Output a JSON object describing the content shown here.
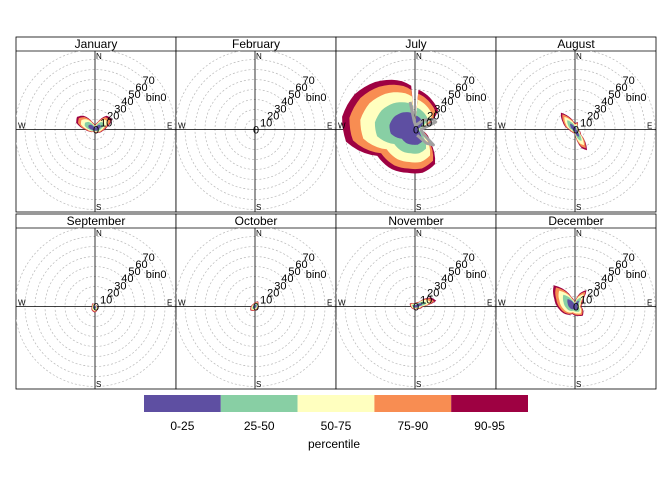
{
  "chart_data": {
    "type": "polar-percentile",
    "panels": [
      {
        "title": "January",
        "shape": "jan"
      },
      {
        "title": "February",
        "shape": "none"
      },
      {
        "title": "July",
        "shape": "jul"
      },
      {
        "title": "August",
        "shape": "aug"
      },
      {
        "title": "September",
        "shape": "sep"
      },
      {
        "title": "October",
        "shape": "oct"
      },
      {
        "title": "November",
        "shape": "nov"
      },
      {
        "title": "December",
        "shape": "dec"
      }
    ],
    "radial_ticks": [
      0,
      10,
      20,
      30,
      40,
      50,
      60,
      70
    ],
    "radial_unit_label": "bin0",
    "radial_max": 80,
    "compass": [
      "N",
      "E",
      "S",
      "W"
    ],
    "legend": {
      "title": "percentile",
      "entries": [
        {
          "label": "0-25",
          "color": "#5E4FA2"
        },
        {
          "label": "25-50",
          "color": "#88CFA4"
        },
        {
          "label": "50-75",
          "color": "#FFFFBF"
        },
        {
          "label": "75-90",
          "color": "#F88D52"
        },
        {
          "label": "90-95",
          "color": "#9E0142"
        }
      ]
    }
  }
}
